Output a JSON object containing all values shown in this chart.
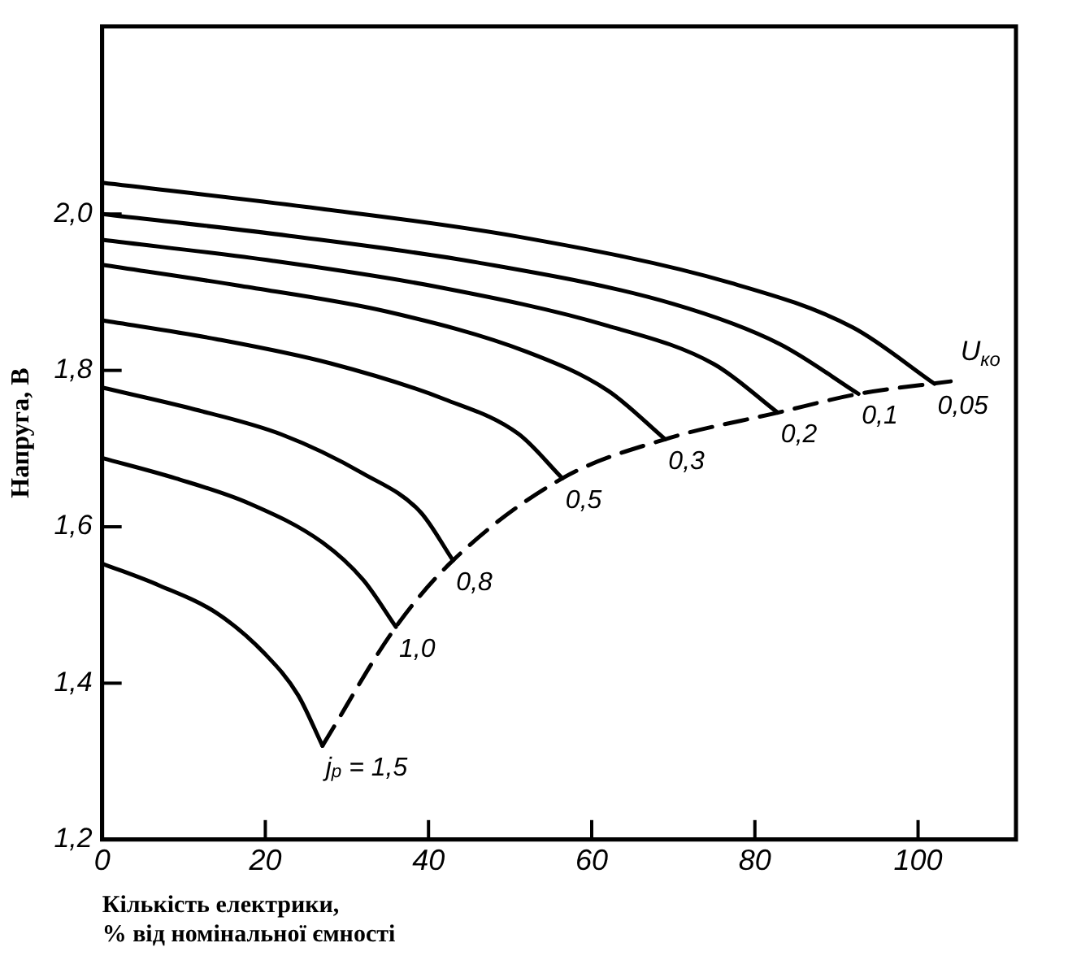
{
  "chart_data": {
    "type": "line",
    "xlabel": "Кількість електрики,\n% від номінальної ємності",
    "ylabel": "Напруга, В",
    "xlim": [
      0,
      112
    ],
    "xticks": [
      0,
      20,
      40,
      60,
      80,
      100
    ],
    "ylim": [
      1.2,
      2.24
    ],
    "yticks": [
      {
        "value": 1.2,
        "label": "1,2"
      },
      {
        "value": 1.4,
        "label": "1,4"
      },
      {
        "value": 1.6,
        "label": "1,6"
      },
      {
        "value": 1.8,
        "label": "1,8"
      },
      {
        "value": 2.0,
        "label": "2,0"
      }
    ],
    "grid": false,
    "legend": false,
    "marker": "none",
    "series": [
      {
        "name": "0,05",
        "color": "#000000",
        "x": [
          0,
          25,
          51,
          77,
          92,
          102
        ],
        "values": [
          2.04,
          2.009,
          1.971,
          1.912,
          1.855,
          1.783
        ]
      },
      {
        "name": "0,1",
        "color": "#000000",
        "x": [
          0,
          23,
          46,
          70,
          83,
          92.7
        ],
        "values": [
          2.0,
          1.972,
          1.938,
          1.885,
          1.834,
          1.77
        ]
      },
      {
        "name": "0,2",
        "color": "#000000",
        "x": [
          0,
          21,
          41,
          62,
          75,
          82.8
        ],
        "values": [
          1.967,
          1.94,
          1.907,
          1.857,
          1.808,
          1.746
        ]
      },
      {
        "name": "0,3",
        "color": "#000000",
        "x": [
          0,
          17,
          35,
          52,
          62,
          69
        ],
        "values": [
          1.935,
          1.908,
          1.875,
          1.824,
          1.774,
          1.712
        ]
      },
      {
        "name": "0,5",
        "color": "#000000",
        "x": [
          0,
          14,
          28,
          42,
          51,
          56.4
        ],
        "values": [
          1.864,
          1.84,
          1.809,
          1.763,
          1.719,
          1.662
        ]
      },
      {
        "name": "0,8",
        "color": "#000000",
        "x": [
          0,
          11,
          22,
          32,
          39,
          43
        ],
        "values": [
          1.778,
          1.751,
          1.718,
          1.668,
          1.619,
          1.557
        ]
      },
      {
        "name": "1,0",
        "color": "#000000",
        "x": [
          0,
          9,
          18,
          27,
          32,
          36
        ],
        "values": [
          1.688,
          1.662,
          1.63,
          1.58,
          1.532,
          1.472
        ]
      },
      {
        "name": "j$_{p}$ = 1,5",
        "color": "#000000",
        "x": [
          0,
          7,
          14,
          20,
          24,
          27
        ],
        "values": [
          1.553,
          1.525,
          1.49,
          1.437,
          1.385,
          1.32
        ]
      },
      {
        "name": "U$_{ко}$",
        "color": "#000000",
        "line_style": "dashed",
        "x": [
          27,
          36,
          43,
          56.4,
          69,
          82.8,
          92.7,
          104
        ],
        "values": [
          1.32,
          1.472,
          1.557,
          1.662,
          1.712,
          1.746,
          1.77,
          1.786
        ]
      }
    ]
  }
}
